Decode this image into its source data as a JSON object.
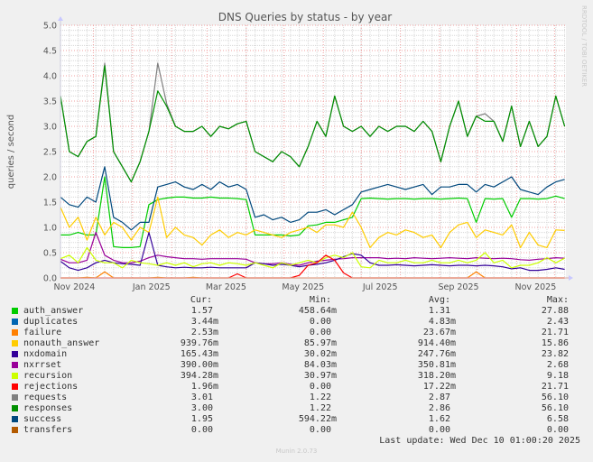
{
  "chart_data": {
    "type": "line",
    "title": "DNS Queries by status - by year",
    "ylabel": "queries / second",
    "xlabel": "",
    "ylim": [
      0,
      5
    ],
    "y_ticks": [
      "0.0",
      "0.5",
      "1.0",
      "1.5",
      "2.0",
      "2.5",
      "3.0",
      "3.5",
      "4.0",
      "4.5",
      "5.0"
    ],
    "xlim": [
      "2024-11-05",
      "2025-12-10"
    ],
    "x_tick_labels": [
      "Nov 2024",
      "Jan 2025",
      "Mar 2025",
      "May 2025",
      "Jul 2025",
      "Sep 2025",
      "Nov 2025"
    ],
    "grid": true,
    "x": [
      "2024-11-05",
      "2024-11-12",
      "2024-11-19",
      "2024-11-26",
      "2024-12-03",
      "2024-12-10",
      "2024-12-17",
      "2024-12-24",
      "2024-12-31",
      "2025-01-07",
      "2025-01-14",
      "2025-01-21",
      "2025-01-28",
      "2025-02-04",
      "2025-02-11",
      "2025-02-18",
      "2025-02-25",
      "2025-03-04",
      "2025-03-11",
      "2025-03-18",
      "2025-03-25",
      "2025-04-01",
      "2025-04-08",
      "2025-04-15",
      "2025-04-22",
      "2025-04-29",
      "2025-05-06",
      "2025-05-13",
      "2025-05-20",
      "2025-05-27",
      "2025-06-03",
      "2025-06-10",
      "2025-06-17",
      "2025-06-24",
      "2025-07-01",
      "2025-07-08",
      "2025-07-15",
      "2025-07-22",
      "2025-07-29",
      "2025-08-05",
      "2025-08-12",
      "2025-08-19",
      "2025-08-26",
      "2025-09-02",
      "2025-09-09",
      "2025-09-16",
      "2025-09-23",
      "2025-09-30",
      "2025-10-07",
      "2025-10-14",
      "2025-10-21",
      "2025-10-28",
      "2025-11-04",
      "2025-11-11",
      "2025-11-18",
      "2025-11-25",
      "2025-12-02",
      "2025-12-09"
    ],
    "series": [
      {
        "name": "requests",
        "color": "#808080",
        "values": [
          3.6,
          2.5,
          2.4,
          2.7,
          2.8,
          4.25,
          2.5,
          2.2,
          1.9,
          2.3,
          2.9,
          4.25,
          3.45,
          3.0,
          2.9,
          2.9,
          3.0,
          2.8,
          3.0,
          2.95,
          3.05,
          3.1,
          2.5,
          2.4,
          2.3,
          2.5,
          2.4,
          2.2,
          2.6,
          3.1,
          2.8,
          3.6,
          3.0,
          2.9,
          3.0,
          2.8,
          3.0,
          2.9,
          3.0,
          3.0,
          2.9,
          3.1,
          2.9,
          2.3,
          3.0,
          3.5,
          2.8,
          3.2,
          3.25,
          3.1,
          2.7,
          3.4,
          2.6,
          3.1,
          2.6,
          2.8,
          3.6,
          3.0
        ]
      },
      {
        "name": "responses",
        "color": "#008f00",
        "values": [
          3.6,
          2.5,
          2.4,
          2.7,
          2.8,
          4.2,
          2.5,
          2.2,
          1.9,
          2.3,
          2.9,
          3.7,
          3.4,
          3.0,
          2.9,
          2.9,
          3.0,
          2.8,
          3.0,
          2.95,
          3.05,
          3.1,
          2.5,
          2.4,
          2.3,
          2.5,
          2.4,
          2.2,
          2.6,
          3.1,
          2.8,
          3.6,
          3.0,
          2.9,
          3.0,
          2.8,
          3.0,
          2.9,
          3.0,
          3.0,
          2.9,
          3.1,
          2.9,
          2.3,
          3.0,
          3.5,
          2.8,
          3.2,
          3.1,
          3.1,
          2.7,
          3.4,
          2.6,
          3.1,
          2.6,
          2.8,
          3.6,
          3.0
        ]
      },
      {
        "name": "auth_answer",
        "color": "#00cc00",
        "values": [
          0.85,
          0.85,
          0.9,
          0.85,
          0.85,
          2.0,
          0.62,
          0.6,
          0.6,
          0.62,
          1.45,
          1.55,
          1.58,
          1.6,
          1.6,
          1.58,
          1.58,
          1.6,
          1.58,
          1.58,
          1.57,
          1.55,
          0.85,
          0.85,
          0.85,
          0.85,
          0.83,
          0.85,
          1.03,
          1.05,
          1.1,
          1.1,
          1.15,
          1.2,
          1.57,
          1.58,
          1.57,
          1.56,
          1.57,
          1.57,
          1.56,
          1.57,
          1.57,
          1.56,
          1.57,
          1.58,
          1.57,
          1.1,
          1.57,
          1.56,
          1.57,
          1.2,
          1.57,
          1.57,
          1.56,
          1.57,
          1.62,
          1.57
        ]
      },
      {
        "name": "nonauth_answer",
        "color": "#ffcc00",
        "values": [
          1.4,
          1.0,
          1.2,
          0.75,
          1.2,
          0.85,
          1.1,
          1.0,
          0.75,
          1.0,
          0.9,
          1.6,
          0.8,
          1.0,
          0.85,
          0.8,
          0.65,
          0.85,
          0.95,
          0.8,
          0.9,
          0.85,
          0.95,
          0.9,
          0.85,
          0.8,
          0.9,
          0.95,
          1.0,
          0.9,
          1.05,
          1.05,
          1.0,
          1.3,
          1.0,
          0.6,
          0.8,
          0.9,
          0.85,
          0.95,
          0.9,
          0.8,
          0.85,
          0.6,
          0.9,
          1.05,
          1.1,
          0.8,
          0.95,
          0.9,
          0.85,
          1.05,
          0.6,
          0.9,
          0.65,
          0.6,
          0.95,
          0.94
        ]
      },
      {
        "name": "nxrrset",
        "color": "#990099",
        "values": [
          0.37,
          0.3,
          0.3,
          0.35,
          0.9,
          0.45,
          0.35,
          0.3,
          0.3,
          0.33,
          0.4,
          0.45,
          0.42,
          0.4,
          0.38,
          0.38,
          0.37,
          0.38,
          0.38,
          0.38,
          0.38,
          0.37,
          0.3,
          0.28,
          0.28,
          0.3,
          0.27,
          0.25,
          0.3,
          0.33,
          0.35,
          0.37,
          0.38,
          0.4,
          0.4,
          0.4,
          0.4,
          0.38,
          0.39,
          0.38,
          0.4,
          0.39,
          0.38,
          0.39,
          0.4,
          0.39,
          0.38,
          0.4,
          0.39,
          0.38,
          0.39,
          0.38,
          0.36,
          0.35,
          0.37,
          0.38,
          0.4,
          0.39
        ]
      },
      {
        "name": "nxdomain",
        "color": "#330099",
        "values": [
          0.33,
          0.2,
          0.15,
          0.2,
          0.3,
          0.35,
          0.3,
          0.28,
          0.27,
          0.25,
          0.9,
          0.25,
          0.22,
          0.2,
          0.21,
          0.2,
          0.2,
          0.21,
          0.2,
          0.2,
          0.2,
          0.2,
          0.3,
          0.28,
          0.25,
          0.27,
          0.25,
          0.22,
          0.25,
          0.27,
          0.3,
          0.35,
          0.42,
          0.48,
          0.45,
          0.3,
          0.25,
          0.25,
          0.26,
          0.25,
          0.24,
          0.25,
          0.26,
          0.25,
          0.24,
          0.25,
          0.25,
          0.24,
          0.25,
          0.24,
          0.22,
          0.18,
          0.2,
          0.15,
          0.15,
          0.17,
          0.2,
          0.17
        ]
      },
      {
        "name": "recursion",
        "color": "#ccff00",
        "values": [
          0.38,
          0.45,
          0.3,
          0.6,
          0.35,
          0.3,
          0.3,
          0.2,
          0.35,
          0.3,
          0.28,
          0.25,
          0.3,
          0.25,
          0.3,
          0.22,
          0.28,
          0.3,
          0.25,
          0.3,
          0.28,
          0.25,
          0.3,
          0.25,
          0.2,
          0.3,
          0.25,
          0.3,
          0.35,
          0.3,
          0.4,
          0.45,
          0.4,
          0.5,
          0.22,
          0.2,
          0.35,
          0.3,
          0.3,
          0.35,
          0.3,
          0.3,
          0.35,
          0.3,
          0.3,
          0.35,
          0.3,
          0.35,
          0.5,
          0.3,
          0.35,
          0.2,
          0.25,
          0.25,
          0.3,
          0.4,
          0.3,
          0.39
        ]
      },
      {
        "name": "rejections",
        "color": "#ff0000",
        "values": [
          0,
          0,
          0,
          0,
          0,
          0,
          0,
          0,
          0,
          0,
          0,
          0,
          0,
          0,
          0,
          0,
          0,
          0,
          0,
          0,
          0.08,
          0,
          0,
          0,
          0,
          0,
          0,
          0.05,
          0.25,
          0.3,
          0.45,
          0.35,
          0.1,
          0,
          0,
          0,
          0,
          0,
          0,
          0,
          0,
          0,
          0,
          0,
          0,
          0,
          0,
          0,
          0,
          0,
          0,
          0,
          0,
          0,
          0,
          0,
          0,
          0
        ]
      },
      {
        "name": "failure",
        "color": "#ff8000",
        "values": [
          0,
          0,
          0,
          0.01,
          0,
          0.12,
          0,
          0,
          0,
          0,
          0,
          0.01,
          0,
          0,
          0,
          0.01,
          0,
          0,
          0,
          0,
          0,
          0,
          0,
          0,
          0,
          0,
          0,
          0,
          0,
          0,
          0,
          0,
          0,
          0,
          0,
          0,
          0,
          0,
          0,
          0,
          0,
          0,
          0,
          0,
          0,
          0,
          0,
          0.12,
          0,
          0,
          0,
          0,
          0,
          0,
          0,
          0,
          0,
          0
        ]
      },
      {
        "name": "success",
        "color": "#00487d",
        "values": [
          1.6,
          1.45,
          1.4,
          1.6,
          1.5,
          2.2,
          1.2,
          1.1,
          0.95,
          1.1,
          1.1,
          1.8,
          1.85,
          1.9,
          1.8,
          1.75,
          1.85,
          1.75,
          1.9,
          1.8,
          1.85,
          1.75,
          1.2,
          1.25,
          1.15,
          1.2,
          1.1,
          1.15,
          1.3,
          1.3,
          1.35,
          1.25,
          1.35,
          1.45,
          1.7,
          1.75,
          1.8,
          1.85,
          1.8,
          1.75,
          1.8,
          1.85,
          1.65,
          1.8,
          1.8,
          1.85,
          1.85,
          1.7,
          1.85,
          1.8,
          1.9,
          2.0,
          1.75,
          1.7,
          1.65,
          1.8,
          1.9,
          1.95
        ]
      }
    ]
  },
  "watermark": "RRDTOOL / TOBI OETIKER",
  "legend": {
    "headers": {
      "cur": "Cur:",
      "min": "Min:",
      "avg": "Avg:",
      "max": "Max:"
    },
    "rows": [
      {
        "name": "auth_answer",
        "color": "#00cc00",
        "cur": "1.57",
        "min": "458.64m",
        "avg": "1.31",
        "max": "27.88"
      },
      {
        "name": "duplicates",
        "color": "#0066b3",
        "cur": "3.44m",
        "min": "0.00",
        "avg": "4.83m",
        "max": "2.43"
      },
      {
        "name": "failure",
        "color": "#ff8000",
        "cur": "2.53m",
        "min": "0.00",
        "avg": "23.67m",
        "max": "21.71"
      },
      {
        "name": "nonauth_answer",
        "color": "#ffcc00",
        "cur": "939.76m",
        "min": "85.97m",
        "avg": "914.40m",
        "max": "15.86"
      },
      {
        "name": "nxdomain",
        "color": "#330099",
        "cur": "165.43m",
        "min": "30.02m",
        "avg": "247.76m",
        "max": "23.82"
      },
      {
        "name": "nxrrset",
        "color": "#990099",
        "cur": "390.00m",
        "min": "84.03m",
        "avg": "350.81m",
        "max": "2.68"
      },
      {
        "name": "recursion",
        "color": "#ccff00",
        "cur": "394.28m",
        "min": "30.97m",
        "avg": "318.20m",
        "max": "9.18"
      },
      {
        "name": "rejections",
        "color": "#ff0000",
        "cur": "1.96m",
        "min": "0.00",
        "avg": "17.22m",
        "max": "21.71"
      },
      {
        "name": "requests",
        "color": "#808080",
        "cur": "3.01",
        "min": "1.22",
        "avg": "2.87",
        "max": "56.10"
      },
      {
        "name": "responses",
        "color": "#008f00",
        "cur": "3.00",
        "min": "1.22",
        "avg": "2.86",
        "max": "56.10"
      },
      {
        "name": "success",
        "color": "#00487d",
        "cur": "1.95",
        "min": "594.22m",
        "avg": "1.62",
        "max": "6.58"
      },
      {
        "name": "transfers",
        "color": "#b35a00",
        "cur": "0.00",
        "min": "0.00",
        "avg": "0.00",
        "max": "0.00"
      }
    ]
  },
  "last_update": "Last update: Wed Dec 10 01:00:20 2025",
  "footer": "Munin 2.0.73"
}
